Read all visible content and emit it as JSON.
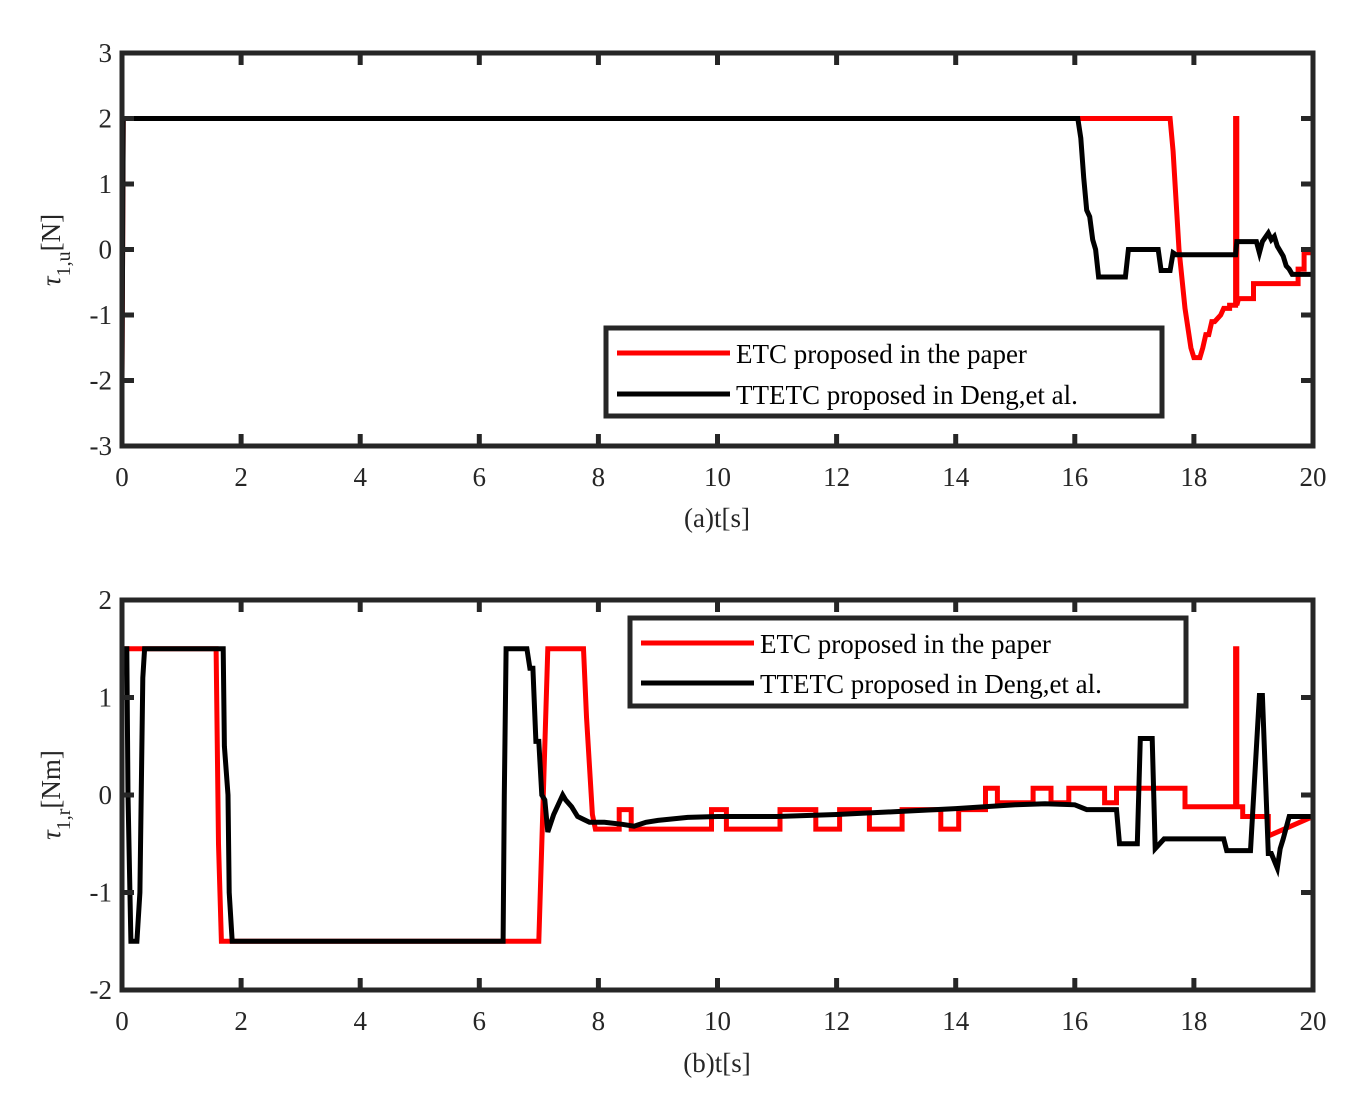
{
  "chart_data": [
    {
      "type": "line",
      "panel": "a",
      "title": "",
      "xlabel": "(a)t[s]",
      "ylabel": "τ1,u[N]",
      "ylabel_symbol": "τ",
      "ylabel_sub": "1,u",
      "ylabel_unit": "[N]",
      "xlim": [
        0,
        20
      ],
      "ylim": [
        -3,
        3
      ],
      "xticks": [
        0,
        2,
        4,
        6,
        8,
        10,
        12,
        14,
        16,
        18,
        20
      ],
      "yticks": [
        -3,
        -2,
        -1,
        0,
        1,
        2,
        3
      ],
      "grid": false,
      "legend_position": "lower right",
      "series": [
        {
          "name": "ETC proposed in the paper",
          "color": "#ff0000",
          "x": [
            0,
            0.02,
            17.6,
            17.65,
            17.75,
            17.85,
            17.95,
            18.0,
            18.1,
            18.15,
            18.2,
            18.25,
            18.3,
            18.35,
            18.45,
            18.5,
            18.6,
            18.6,
            18.7,
            18.7,
            18.72,
            18.72,
            18.75,
            18.75,
            19.0,
            19.0,
            19.3,
            19.35,
            19.75,
            19.75,
            19.85,
            19.85,
            20
          ],
          "y": [
            -2,
            2,
            2,
            1.5,
            0.0,
            -0.9,
            -1.5,
            -1.65,
            -1.65,
            -1.5,
            -1.3,
            -1.3,
            -1.1,
            -1.1,
            -1.0,
            -0.9,
            -0.9,
            -0.85,
            -0.85,
            2.0,
            2.0,
            -0.85,
            -0.75,
            -0.75,
            -0.75,
            -0.52,
            -0.52,
            -0.52,
            -0.52,
            -0.3,
            -0.3,
            -0.05,
            -0.05
          ]
        },
        {
          "name": "TTETC proposed in Deng,et al.",
          "color": "#000000",
          "x": [
            0,
            0.02,
            16.05,
            16.1,
            16.15,
            16.2,
            16.25,
            16.3,
            16.35,
            16.4,
            16.85,
            16.9,
            17.4,
            17.45,
            17.6,
            17.65,
            17.7,
            18.7,
            18.72,
            19.0,
            19.05,
            19.1,
            19.15,
            19.25,
            19.3,
            19.35,
            19.4,
            19.5,
            19.55,
            19.6,
            19.65,
            20
          ],
          "y": [
            -2,
            2,
            2,
            1.7,
            1.1,
            0.6,
            0.5,
            0.15,
            0.0,
            -0.42,
            -0.42,
            0.0,
            0.0,
            -0.32,
            -0.32,
            -0.05,
            -0.08,
            -0.08,
            0.12,
            0.12,
            0.12,
            -0.05,
            0.12,
            0.25,
            0.15,
            0.2,
            0.05,
            -0.1,
            -0.25,
            -0.3,
            -0.38,
            -0.38
          ]
        }
      ]
    },
    {
      "type": "line",
      "panel": "b",
      "title": "",
      "xlabel": "(b)t[s]",
      "ylabel": "τ1,r[Nm]",
      "ylabel_symbol": "τ",
      "ylabel_sub": "1,r",
      "ylabel_unit": "[Nm]",
      "xlim": [
        0,
        20
      ],
      "ylim": [
        -2,
        2
      ],
      "xticks": [
        0,
        2,
        4,
        6,
        8,
        10,
        12,
        14,
        16,
        18,
        20
      ],
      "yticks": [
        -2,
        -1,
        0,
        1,
        2
      ],
      "grid": false,
      "legend_position": "upper right",
      "series": [
        {
          "name": "ETC proposed in the paper",
          "color": "#ff0000",
          "x": [
            0,
            1.58,
            1.62,
            1.67,
            1.7,
            7.0,
            7.05,
            7.1,
            7.15,
            7.75,
            7.8,
            7.9,
            7.95,
            8.0,
            8.35,
            8.35,
            8.55,
            8.55,
            9.9,
            9.9,
            10.15,
            10.15,
            11.05,
            11.05,
            11.65,
            11.65,
            12.05,
            12.05,
            12.55,
            12.55,
            13.1,
            13.1,
            13.75,
            13.75,
            14.05,
            14.05,
            14.5,
            14.5,
            14.7,
            14.7,
            15.3,
            15.3,
            15.6,
            15.6,
            15.9,
            15.9,
            16.5,
            16.5,
            16.7,
            16.7,
            17.5,
            17.5,
            17.6,
            17.6,
            17.85,
            17.85,
            18.7,
            18.7,
            18.72,
            18.72,
            18.82,
            18.82,
            19.25,
            19.25,
            20
          ],
          "y": [
            1.5,
            1.5,
            -0.5,
            -1.5,
            -1.5,
            -1.5,
            -0.5,
            0.5,
            1.5,
            1.5,
            0.8,
            -0.2,
            -0.35,
            -0.35,
            -0.35,
            -0.15,
            -0.15,
            -0.35,
            -0.35,
            -0.15,
            -0.15,
            -0.35,
            -0.35,
            -0.15,
            -0.15,
            -0.35,
            -0.35,
            -0.15,
            -0.15,
            -0.35,
            -0.35,
            -0.15,
            -0.15,
            -0.35,
            -0.35,
            -0.15,
            -0.15,
            0.07,
            0.07,
            -0.08,
            -0.08,
            0.07,
            0.07,
            -0.08,
            -0.08,
            0.07,
            0.07,
            -0.08,
            -0.08,
            0.07,
            0.07,
            0.07,
            0.07,
            0.07,
            0.07,
            -0.12,
            -0.12,
            1.5,
            1.5,
            -0.12,
            -0.12,
            -0.22,
            -0.22,
            -0.42,
            -0.22
          ]
        },
        {
          "name": "TTETC proposed in Deng,et al.",
          "color": "#000000",
          "x": [
            0,
            0.08,
            0.1,
            0.15,
            0.25,
            0.3,
            0.35,
            0.38,
            1.7,
            1.72,
            1.78,
            1.8,
            1.85,
            6.4,
            6.42,
            6.45,
            6.8,
            6.85,
            6.9,
            6.95,
            7.0,
            7.05,
            7.1,
            7.15,
            7.25,
            7.4,
            7.45,
            7.55,
            7.65,
            7.75,
            7.85,
            8.1,
            8.4,
            8.6,
            8.8,
            9.0,
            9.5,
            10.0,
            11.0,
            12.0,
            13.0,
            14.0,
            15.0,
            15.5,
            16.0,
            16.2,
            16.4,
            16.7,
            16.75,
            17.05,
            17.1,
            17.3,
            17.35,
            17.5,
            17.55,
            17.55,
            18.5,
            18.55,
            18.9,
            18.95,
            19.1,
            19.15,
            19.25,
            19.3,
            19.4,
            19.45,
            19.5,
            19.6,
            19.7,
            20
          ],
          "y": [
            1.5,
            1.5,
            0.0,
            -1.5,
            -1.5,
            -1.0,
            1.2,
            1.5,
            1.5,
            0.5,
            0.0,
            -1.0,
            -1.5,
            -1.5,
            0.0,
            1.5,
            1.5,
            1.3,
            1.3,
            0.55,
            0.55,
            0.0,
            -0.05,
            -0.38,
            -0.2,
            0.0,
            -0.05,
            -0.12,
            -0.22,
            -0.25,
            -0.28,
            -0.28,
            -0.3,
            -0.32,
            -0.28,
            -0.26,
            -0.23,
            -0.22,
            -0.22,
            -0.2,
            -0.17,
            -0.14,
            -0.1,
            -0.09,
            -0.1,
            -0.15,
            -0.15,
            -0.15,
            -0.5,
            -0.5,
            0.58,
            0.58,
            -0.55,
            -0.45,
            -0.45,
            -0.45,
            -0.45,
            -0.57,
            -0.57,
            -0.57,
            1.02,
            1.02,
            -0.6,
            -0.6,
            -0.75,
            -0.55,
            -0.45,
            -0.22,
            -0.22,
            -0.22
          ]
        }
      ]
    }
  ],
  "panels": {
    "a": {
      "xlabel": "(a)t[s]",
      "ylabel_symbol": "τ",
      "ylabel_sub": "1,u",
      "ylabel_unit": "[N]",
      "yticks": [
        "3",
        "2",
        "1",
        "0",
        "-1",
        "-2",
        "-3"
      ],
      "xticks": [
        "0",
        "2",
        "4",
        "6",
        "8",
        "10",
        "12",
        "14",
        "16",
        "18",
        "20"
      ],
      "legend": [
        "ETC proposed in the paper",
        "TTETC proposed in Deng,et al."
      ]
    },
    "b": {
      "xlabel": "(b)t[s]",
      "ylabel_symbol": "τ",
      "ylabel_sub": "1,r",
      "ylabel_unit": "[Nm]",
      "yticks": [
        "2",
        "1",
        "0",
        "-1",
        "-2"
      ],
      "xticks": [
        "0",
        "2",
        "4",
        "6",
        "8",
        "10",
        "12",
        "14",
        "16",
        "18",
        "20"
      ],
      "legend": [
        "ETC proposed in the paper",
        "TTETC proposed in Deng,et al."
      ]
    }
  },
  "colors": {
    "etc": "#ff0000",
    "ttetc": "#000000",
    "axes": "#262626"
  }
}
